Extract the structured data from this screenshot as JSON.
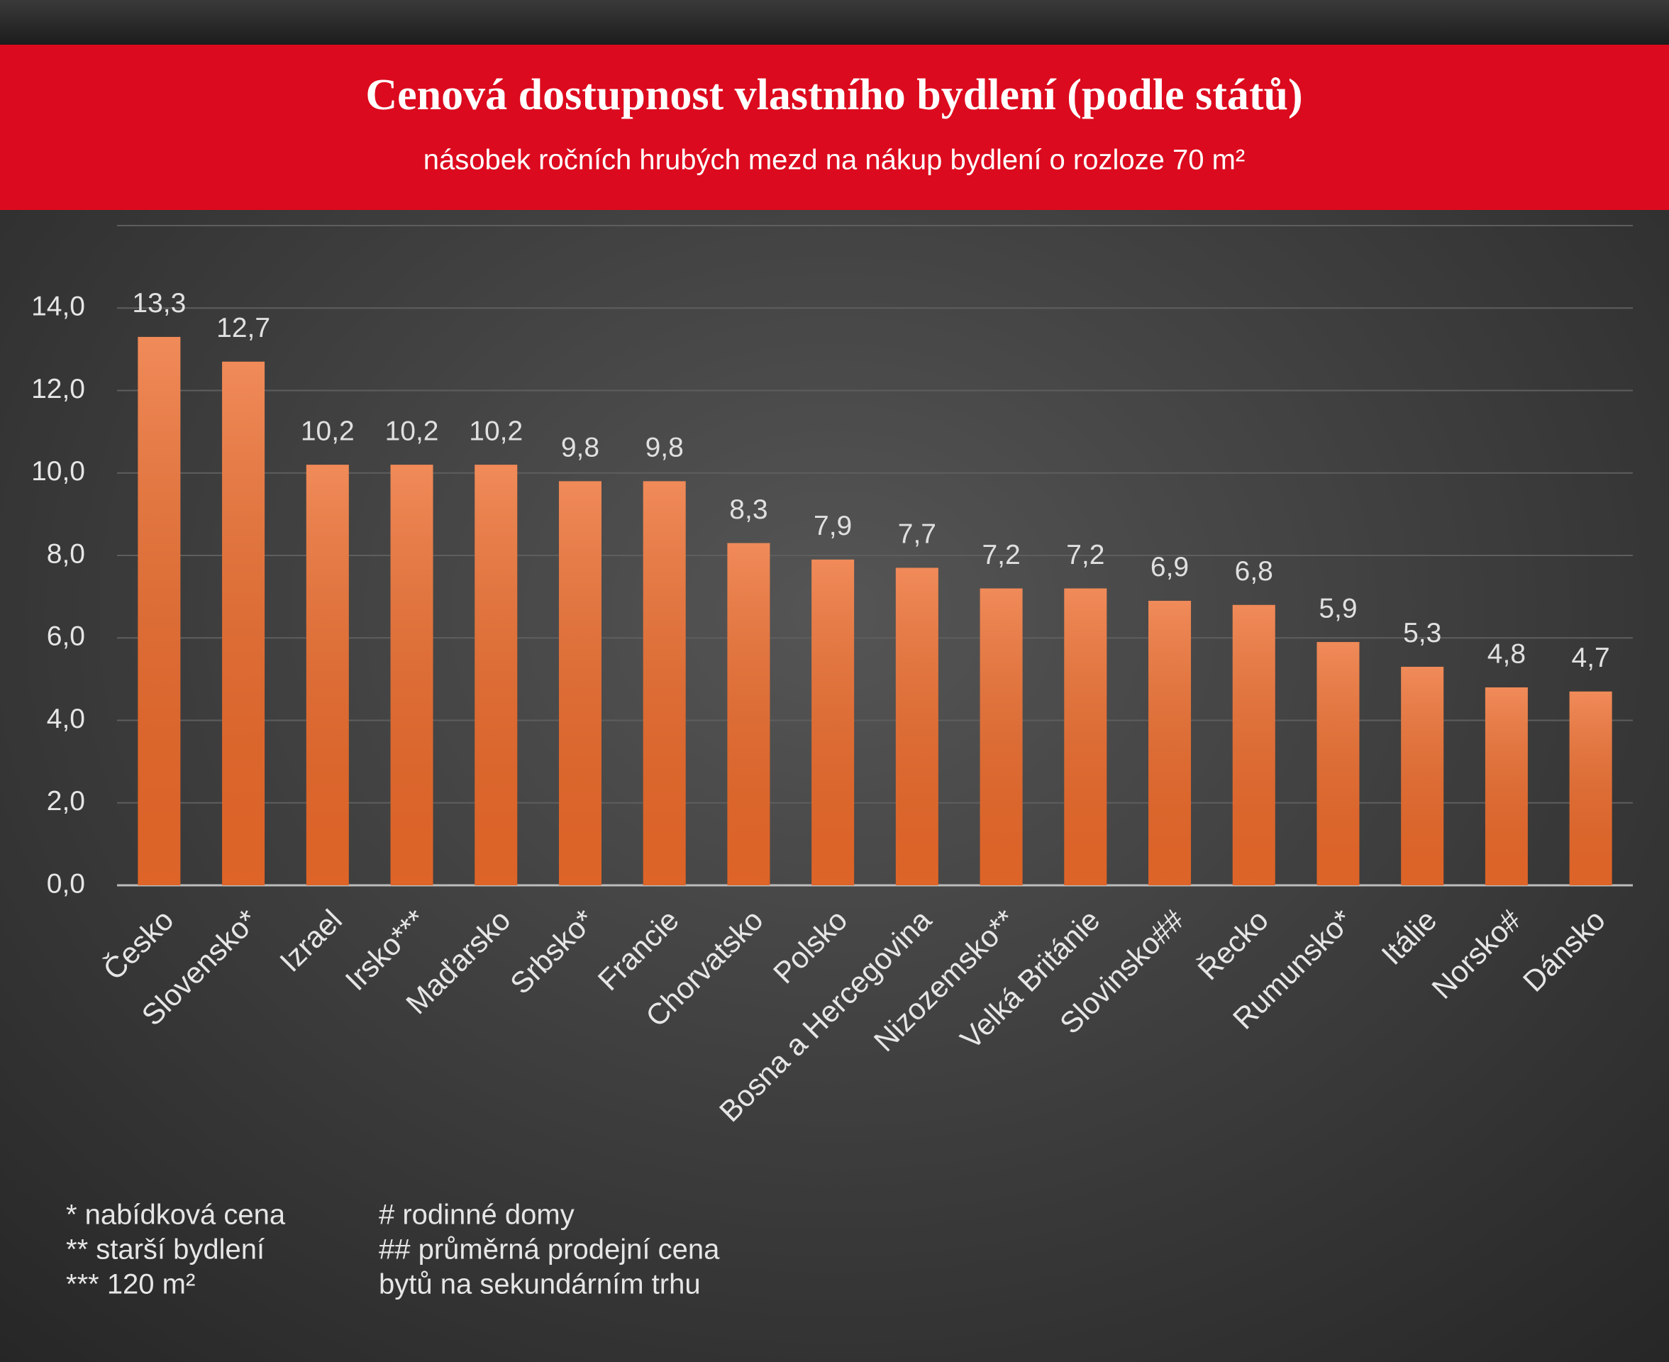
{
  "chart_data": {
    "type": "bar",
    "title": "Cenová dostupnost vlastního bydlení (podle států)",
    "subtitle": "násobek ročních hrubých mezd na nákup bydlení o rozloze 70 m²",
    "categories": [
      "Česko",
      "Slovensko*",
      "Izrael",
      "Irsko***",
      "Maďarsko",
      "Srbsko*",
      "Francie",
      "Chorvatsko",
      "Polsko",
      "Bosna a Hercegovina",
      "Nizozemsko**",
      "Velká Británie",
      "Slovinsko##",
      "Řecko",
      "Rumunsko*",
      "Itálie",
      "Norsko#",
      "Dánsko"
    ],
    "values": [
      13.3,
      12.7,
      10.2,
      10.2,
      10.2,
      9.8,
      9.8,
      8.3,
      7.9,
      7.7,
      7.2,
      7.2,
      6.9,
      6.8,
      5.9,
      5.3,
      4.8,
      4.7
    ],
    "value_labels": [
      "13,3",
      "12,7",
      "10,2",
      "10,2",
      "10,2",
      "9,8",
      "9,8",
      "8,3",
      "7,9",
      "7,7",
      "7,2",
      "7,2",
      "6,9",
      "6,8",
      "5,9",
      "5,3",
      "4,8",
      "4,7"
    ],
    "color": "#ec6a2a",
    "ylim": [
      0,
      16
    ],
    "yticks": [
      {
        "value": 0,
        "label": "0,0"
      },
      {
        "value": 2,
        "label": "2,0"
      },
      {
        "value": 4,
        "label": "4,0"
      },
      {
        "value": 6,
        "label": "6,0"
      },
      {
        "value": 8,
        "label": "8,0"
      },
      {
        "value": 10,
        "label": "10,0"
      },
      {
        "value": 12,
        "label": "12,0"
      },
      {
        "value": 14,
        "label": "14,0"
      }
    ],
    "grid": true,
    "notes": [
      "* nabídková cena",
      "** starší bydlení",
      "*** 120 m²",
      "# rodinné domy",
      "## průměrná prodejní cena",
      "bytů na sekundárním trhu"
    ]
  }
}
